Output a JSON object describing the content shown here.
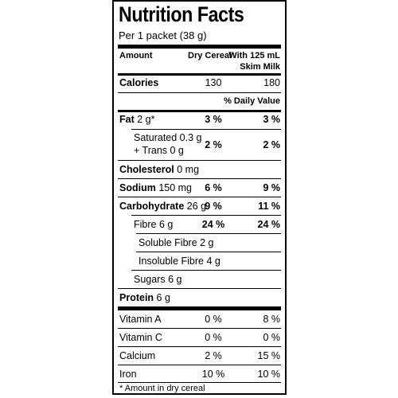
{
  "title": "Nutrition Facts",
  "serving": "Per 1 packet (38 g)",
  "header": {
    "amount": "Amount",
    "col1": "Dry Cereal",
    "col2_line1": "With 125 mL",
    "col2_line2": "Skim Milk"
  },
  "calories": {
    "label": "Calories",
    "col1": "130",
    "col2": "180"
  },
  "daily_value_label": "% Daily Value",
  "nutrients": {
    "fat": {
      "name": "Fat",
      "amount": " 2 g*",
      "col1": "3 %",
      "col2": "3 %"
    },
    "saturated": {
      "line1": "Saturated 0.3 g",
      "line2": "+ Trans 0 g",
      "col1": "2 %",
      "col2": "2 %"
    },
    "cholesterol": {
      "name": "Cholesterol",
      "amount": " 0 mg"
    },
    "sodium": {
      "name": "Sodium",
      "amount": " 150 mg",
      "col1": "6 %",
      "col2": "9 %"
    },
    "carbohydrate": {
      "name": "Carbohydrate",
      "amount": " 26 g",
      "col1": "9 %",
      "col2": "11 %"
    },
    "fibre": {
      "label": "Fibre 6 g",
      "col1": "24 %",
      "col2": "24 %"
    },
    "soluble": {
      "label": "Soluble Fibre 2 g"
    },
    "insoluble": {
      "label": "Insoluble Fibre 4 g"
    },
    "sugars": {
      "label": "Sugars 6 g"
    },
    "protein": {
      "name": "Protein",
      "amount": " 6 g"
    }
  },
  "vitamins": {
    "vitamin_a": {
      "label": "Vitamin A",
      "col1": "0 %",
      "col2": "8 %"
    },
    "vitamin_c": {
      "label": "Vitamin C",
      "col1": "0 %",
      "col2": "0 %"
    },
    "calcium": {
      "label": "Calcium",
      "col1": "2 %",
      "col2": "15 %"
    },
    "iron": {
      "label": "Iron",
      "col1": "10 %",
      "col2": "10 %"
    }
  },
  "footnote": "* Amount in dry cereal"
}
